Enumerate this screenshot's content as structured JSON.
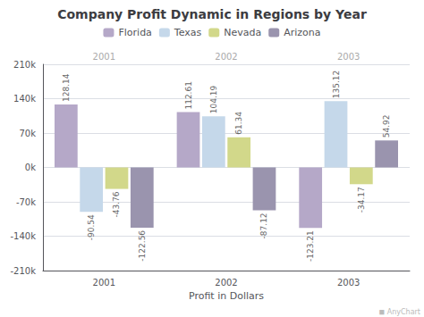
{
  "chart_data": {
    "type": "bar",
    "title": "Company Profit Dynamic in Regions by Year",
    "x_label": "Profit in Dollars",
    "categories": [
      "2001",
      "2002",
      "2003"
    ],
    "series": [
      {
        "name": "Florida",
        "color": "#b5a8c8",
        "values": [
          128.14,
          112.61,
          -123.21
        ]
      },
      {
        "name": "Texas",
        "color": "#c5d8ea",
        "values": [
          -90.54,
          104.19,
          135.12
        ]
      },
      {
        "name": "Nevada",
        "color": "#d2d88a",
        "values": [
          -43.76,
          61.34,
          -34.17
        ]
      },
      {
        "name": "Arizona",
        "color": "#9a94ae",
        "values": [
          -122.56,
          -87.12,
          54.92
        ]
      }
    ],
    "ylim": [
      -210,
      210
    ],
    "yticks": [
      {
        "value": -210,
        "label": "-210k"
      },
      {
        "value": -140,
        "label": "-140k"
      },
      {
        "value": -70,
        "label": "-70k"
      },
      {
        "value": 0,
        "label": "0k"
      },
      {
        "value": 70,
        "label": "70k"
      },
      {
        "value": 140,
        "label": "140k"
      },
      {
        "value": 210,
        "label": "210k"
      }
    ],
    "grid": true,
    "legend": "top",
    "data_labels": true,
    "annotations": [
      "◼ AnyChart"
    ]
  }
}
